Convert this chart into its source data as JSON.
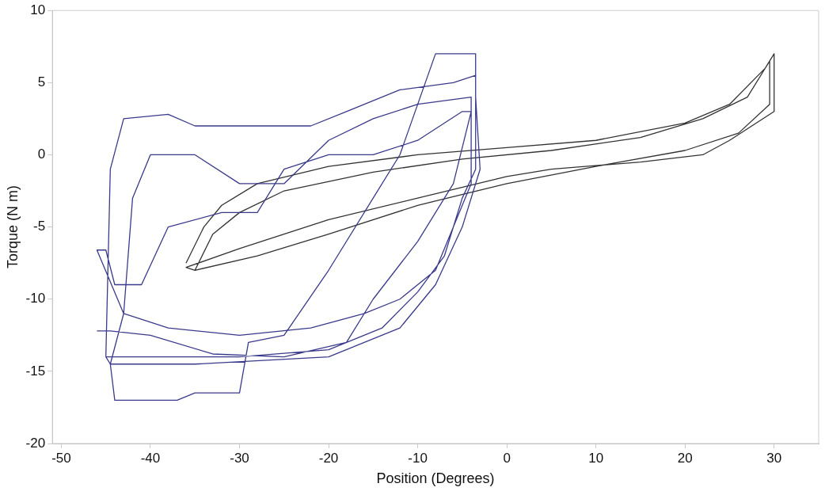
{
  "chart_data": {
    "type": "line",
    "xlabel": "Position (Degrees)",
    "ylabel": "Torque (N m)",
    "xlim": [
      -51,
      35
    ],
    "xticks": [
      -50,
      -40,
      -30,
      -20,
      -10,
      0,
      10,
      20,
      30
    ],
    "ylim": [
      -20,
      10
    ],
    "yticks": [
      -20,
      -15,
      -10,
      -5,
      0,
      5,
      10
    ],
    "grid": false,
    "legend": false,
    "marker": "none",
    "line_style": "solid",
    "series": [
      {
        "color": "#3a3a8c",
        "x": [
          -45,
          -44.5,
          -43,
          -38,
          -35,
          -22,
          -18,
          -12,
          -6,
          -3.5,
          -3.5,
          -5,
          -7,
          -10,
          -14,
          -20,
          -30,
          -40,
          -45,
          -44.5,
          -44,
          -37,
          -35,
          -30,
          -29,
          -25,
          -20,
          -15,
          -12,
          -8,
          -3.5,
          -3.5,
          -3,
          -5,
          -8,
          -12,
          -20,
          -35,
          -44.5,
          -43,
          -42,
          -40,
          -35,
          -30,
          -25,
          -20,
          -15,
          -10,
          -4,
          -4,
          -8,
          -12,
          -16,
          -22,
          -30,
          -38,
          -43,
          -46,
          -45,
          -44,
          -41,
          -38,
          -32,
          -28,
          -25,
          -20,
          -15,
          -10,
          -5,
          -4,
          -6,
          -10,
          -15,
          -18,
          -25,
          -33,
          -40,
          -44.5,
          -46
        ],
        "values": [
          -14,
          -1,
          2.5,
          2.8,
          2,
          2,
          3,
          4.5,
          5,
          5.5,
          -1,
          -3,
          -7,
          -9.5,
          -12,
          -13.5,
          -14,
          -14,
          -14,
          -14.5,
          -17,
          -17,
          -16.5,
          -16.5,
          -13,
          -12.5,
          -8,
          -3,
          0,
          7,
          7,
          4,
          -1,
          -5,
          -9,
          -12,
          -14,
          -14.5,
          -14.5,
          -11,
          -3,
          0,
          0,
          -2,
          -2,
          1,
          2.5,
          3.5,
          4,
          -2,
          -8,
          -10,
          -11,
          -12,
          -12.5,
          -12,
          -11,
          -6.6,
          -6.6,
          -9,
          -9,
          -5,
          -4,
          -4,
          -1,
          0,
          0,
          1,
          3,
          3,
          -2,
          -6,
          -10,
          -13,
          -14,
          -13.8,
          -12.5,
          -12.2,
          -12.2
        ]
      },
      {
        "color": "#333333",
        "x": [
          -36,
          -34,
          -32,
          -28,
          -20,
          -10,
          0,
          10,
          20,
          25,
          29,
          30,
          30,
          25,
          22,
          15,
          5,
          0,
          -10,
          -20,
          -30,
          -36,
          -35,
          -33,
          -30,
          -25,
          -15,
          -5,
          5,
          15,
          22,
          27,
          29.5,
          29.5,
          26,
          20,
          10,
          0,
          -10,
          -20,
          -28,
          -35
        ],
        "values": [
          -7.5,
          -5,
          -3.5,
          -2,
          -0.8,
          0,
          0.5,
          1,
          2.2,
          3.5,
          6,
          7,
          3,
          1,
          0,
          -0.5,
          -1,
          -1.5,
          -3,
          -4.5,
          -6.5,
          -7.8,
          -8,
          -5.5,
          -4,
          -2.5,
          -1.2,
          -0.3,
          0.3,
          1.2,
          2.5,
          4,
          6.5,
          3.5,
          1.5,
          0.3,
          -0.8,
          -2,
          -3.5,
          -5.5,
          -7,
          -8
        ]
      }
    ]
  }
}
